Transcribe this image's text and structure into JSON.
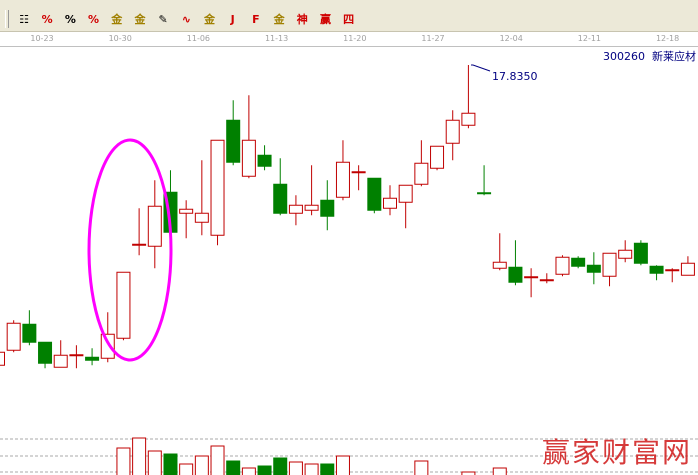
{
  "toolbar": {
    "icons": [
      "ruler-icon",
      "percent-line-icon",
      "percent-icon",
      "percent-bars-icon",
      "gold-circle-icon",
      "gold-bars-icon",
      "pen-icon",
      "wave-icon",
      "gold-icon",
      "j-line-icon",
      "f-line-icon",
      "gold-line-icon",
      "fund-line-icon",
      "win-line-icon",
      "four-line-icon"
    ],
    "glyphs": [
      "☷",
      "%",
      "%",
      "%",
      "金",
      "金",
      "✎",
      "∿",
      "金",
      "J",
      "F",
      "金",
      "神",
      "赢",
      "四"
    ]
  },
  "date_axis": [
    "10-23",
    "10-30",
    "11-06",
    "11-13",
    "11-20",
    "11-27",
    "12-04",
    "12-11",
    "12-18"
  ],
  "stock": {
    "code": "300260",
    "name": "新莱应材"
  },
  "high_label": "17.8350",
  "watermark": "赢家财富网",
  "colors": {
    "up": "#c00000",
    "down": "#008000",
    "annotation": "#ff00ff",
    "label": "#000080"
  },
  "chart_data": {
    "type": "candlestick",
    "candles": [
      [
        11.83,
        12.13,
        11.79,
        12.09
      ],
      [
        12.13,
        12.73,
        12.09,
        12.67
      ],
      [
        12.65,
        12.93,
        12.23,
        12.29
      ],
      [
        12.29,
        12.29,
        11.77,
        11.87
      ],
      [
        11.79,
        12.33,
        11.79,
        12.03
      ],
      [
        12.03,
        12.23,
        11.77,
        12.04
      ],
      [
        11.99,
        12.17,
        11.83,
        11.93
      ],
      [
        11.97,
        12.89,
        11.89,
        12.45
      ],
      [
        12.37,
        13.69,
        12.33,
        13.69
      ],
      [
        14.23,
        14.97,
        14.03,
        14.25
      ],
      [
        14.21,
        15.53,
        13.77,
        15.01
      ],
      [
        15.29,
        15.73,
        14.43,
        14.49
      ],
      [
        14.87,
        15.13,
        14.37,
        14.95
      ],
      [
        14.69,
        15.93,
        14.43,
        14.87
      ],
      [
        14.43,
        16.33,
        14.23,
        16.33
      ],
      [
        16.73,
        17.13,
        15.83,
        15.89
      ],
      [
        15.61,
        17.23,
        15.57,
        16.33
      ],
      [
        16.03,
        16.23,
        15.73,
        15.81
      ],
      [
        15.45,
        15.97,
        14.83,
        14.87
      ],
      [
        14.87,
        15.23,
        14.63,
        15.03
      ],
      [
        14.93,
        15.83,
        14.83,
        15.03
      ],
      [
        15.13,
        15.53,
        14.53,
        14.81
      ],
      [
        15.19,
        16.33,
        15.13,
        15.89
      ],
      [
        15.69,
        15.83,
        15.33,
        15.7
      ],
      [
        15.57,
        15.57,
        14.87,
        14.93
      ],
      [
        14.97,
        15.43,
        14.83,
        15.17
      ],
      [
        15.09,
        15.43,
        14.57,
        15.43
      ],
      [
        15.45,
        16.33,
        15.41,
        15.87
      ],
      [
        15.77,
        16.21,
        15.73,
        16.21
      ],
      [
        16.27,
        16.93,
        15.93,
        16.73
      ],
      [
        16.63,
        17.835,
        16.57,
        16.87
      ],
      [
        15.28,
        15.83,
        15.23,
        15.27
      ],
      [
        13.77,
        14.47,
        13.73,
        13.89
      ],
      [
        13.79,
        14.33,
        13.43,
        13.49
      ],
      [
        13.59,
        13.77,
        13.19,
        13.6
      ],
      [
        13.53,
        13.67,
        13.47,
        13.54
      ],
      [
        13.65,
        14.03,
        13.61,
        13.99
      ],
      [
        13.97,
        14.01,
        13.77,
        13.81
      ],
      [
        13.83,
        14.09,
        13.45,
        13.69
      ],
      [
        13.61,
        14.07,
        13.41,
        14.07
      ],
      [
        13.97,
        14.33,
        13.89,
        14.13
      ],
      [
        14.27,
        14.33,
        13.83,
        13.87
      ],
      [
        13.81,
        13.83,
        13.53,
        13.67
      ],
      [
        13.73,
        13.77,
        13.49,
        13.74
      ],
      [
        13.63,
        14.01,
        13.63,
        13.87
      ]
    ],
    "candle_fields": [
      "open",
      "high",
      "low",
      "close"
    ],
    "volume": [
      0,
      0,
      0,
      0,
      0,
      0,
      0,
      0,
      27,
      37,
      24,
      21,
      11,
      19,
      29,
      14,
      7,
      9,
      17,
      13,
      11,
      11,
      19,
      0,
      0,
      0,
      0,
      14,
      0,
      0,
      3,
      0,
      7,
      0,
      0,
      0,
      0,
      0,
      0,
      0,
      0,
      0,
      0,
      0,
      0
    ],
    "annotation": "ellipse around candles 8-11",
    "grid": "dashed horizontal in volume pane"
  }
}
